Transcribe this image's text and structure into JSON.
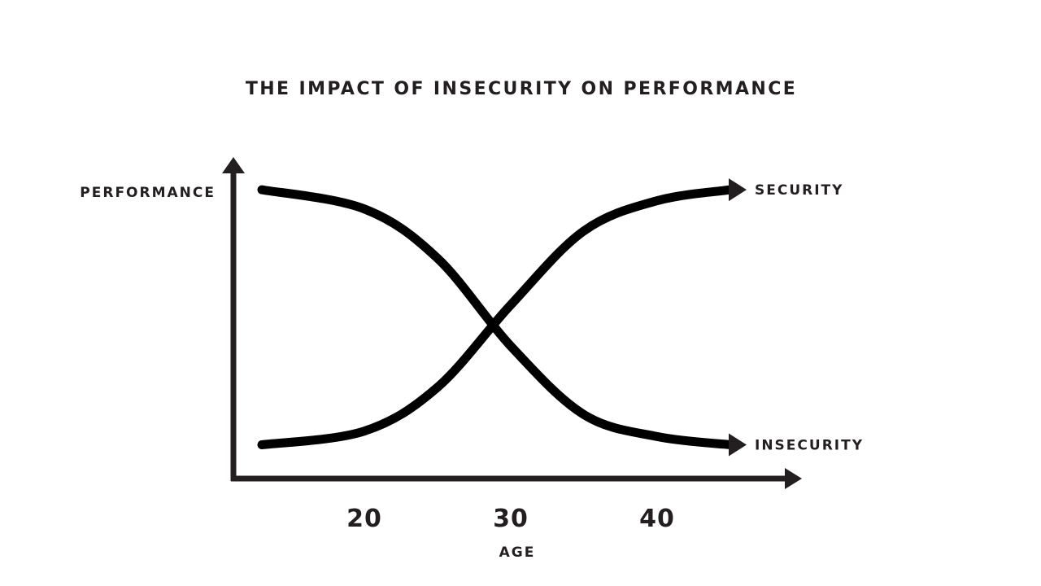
{
  "chart_data": {
    "type": "line",
    "title": "THE IMPACT OF INSECURITY ON PERFORMANCE",
    "xlabel": "AGE",
    "ylabel": "PERFORMANCE",
    "x_ticks": [
      "20",
      "30",
      "40"
    ],
    "grid": false,
    "series": [
      {
        "name": "SECURITY",
        "x": [
          13,
          20,
          25,
          30,
          35,
          40,
          45
        ],
        "y": [
          0.04,
          0.09,
          0.25,
          0.55,
          0.82,
          0.93,
          0.97
        ]
      },
      {
        "name": "INSECURITY",
        "x": [
          13,
          20,
          25,
          30,
          35,
          40,
          45
        ],
        "y": [
          0.97,
          0.9,
          0.72,
          0.4,
          0.15,
          0.07,
          0.04
        ]
      }
    ]
  },
  "colors": {
    "text": "#231f20",
    "curve": "#000000",
    "background": "#ffffff"
  }
}
